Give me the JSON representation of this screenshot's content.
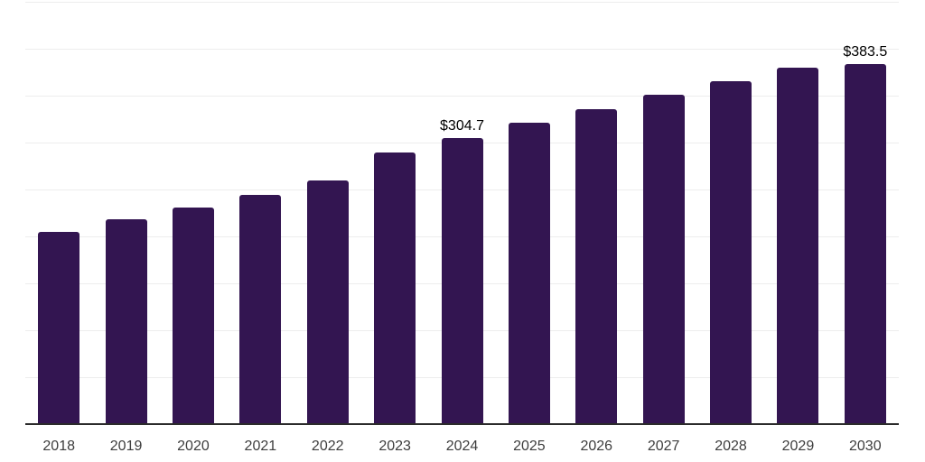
{
  "chart_data": {
    "type": "bar",
    "title": "",
    "xlabel": "",
    "ylabel": "",
    "categories": [
      "2018",
      "2019",
      "2020",
      "2021",
      "2022",
      "2023",
      "2024",
      "2025",
      "2026",
      "2027",
      "2028",
      "2029",
      "2030"
    ],
    "values": [
      205.1,
      218.6,
      230.8,
      244.2,
      259.6,
      289.7,
      304.7,
      321.2,
      335.3,
      351.0,
      365.4,
      380.1,
      383.5
    ],
    "data_labels": [
      {
        "category": "2024",
        "text": "$304.7"
      },
      {
        "category": "2030",
        "text": "$383.5"
      }
    ],
    "ylim": [
      0,
      450
    ],
    "gridline_step": 50,
    "grid": "horizontal",
    "legend": "none",
    "colors": {
      "bar": "#331551",
      "gridline": "#ededed",
      "axis_line": "#2b2b2b",
      "tick_label": "#3d3d3d",
      "data_label": "#000000",
      "background": "#ffffff"
    }
  }
}
